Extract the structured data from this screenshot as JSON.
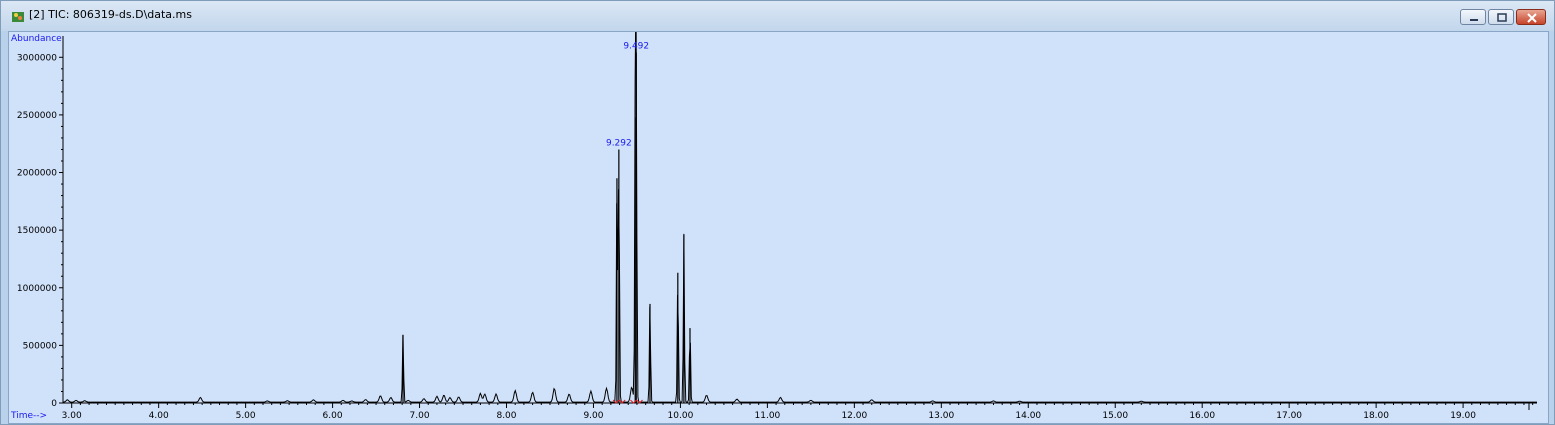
{
  "window": {
    "title": "[2] TIC: 806319-ds.D\\data.ms",
    "buttons": [
      "minimize",
      "restore",
      "close"
    ]
  },
  "chart_data": {
    "type": "line",
    "ylabel": "Abundance",
    "xlabel": "Time-->",
    "xlim": [
      2.9,
      19.85
    ],
    "ylim": [
      0,
      3150000
    ],
    "x_ticks": [
      "3.00",
      "4.00",
      "5.00",
      "6.00",
      "7.00",
      "8.00",
      "9.00",
      "10.00",
      "11.00",
      "12.00",
      "13.00",
      "14.00",
      "15.00",
      "16.00",
      "17.00",
      "18.00",
      "19.00"
    ],
    "x_tick_values": [
      3,
      4,
      5,
      6,
      7,
      8,
      9,
      10,
      11,
      12,
      13,
      14,
      15,
      16,
      17,
      18,
      19
    ],
    "y_ticks": [
      "0",
      "500000",
      "1000000",
      "1500000",
      "2000000",
      "2500000",
      "3000000"
    ],
    "y_tick_values": [
      0,
      500000,
      1000000,
      1500000,
      2000000,
      2500000,
      3000000
    ],
    "annotations": [
      {
        "label": "9.492",
        "x": 9.492,
        "y": 3040000
      },
      {
        "label": "9.292",
        "x": 9.292,
        "y": 2200000
      }
    ],
    "peaks": [
      {
        "x": 2.95,
        "y": 20000
      },
      {
        "x": 3.05,
        "y": 15000
      },
      {
        "x": 3.15,
        "y": 12000
      },
      {
        "x": 4.48,
        "y": 40000
      },
      {
        "x": 5.25,
        "y": 10000
      },
      {
        "x": 5.48,
        "y": 12000
      },
      {
        "x": 5.78,
        "y": 20000
      },
      {
        "x": 6.12,
        "y": 15000
      },
      {
        "x": 6.22,
        "y": 10000
      },
      {
        "x": 6.38,
        "y": 22000
      },
      {
        "x": 6.55,
        "y": 55000
      },
      {
        "x": 6.67,
        "y": 40000
      },
      {
        "x": 6.81,
        "y": 590000
      },
      {
        "x": 6.87,
        "y": 15000
      },
      {
        "x": 7.05,
        "y": 30000
      },
      {
        "x": 7.2,
        "y": 50000
      },
      {
        "x": 7.28,
        "y": 60000
      },
      {
        "x": 7.35,
        "y": 40000
      },
      {
        "x": 7.45,
        "y": 45000
      },
      {
        "x": 7.7,
        "y": 75000
      },
      {
        "x": 7.75,
        "y": 70000
      },
      {
        "x": 7.88,
        "y": 70000
      },
      {
        "x": 8.1,
        "y": 100000
      },
      {
        "x": 8.3,
        "y": 85000
      },
      {
        "x": 8.55,
        "y": 120000
      },
      {
        "x": 8.72,
        "y": 70000
      },
      {
        "x": 8.97,
        "y": 95000
      },
      {
        "x": 9.15,
        "y": 120000
      },
      {
        "x": 9.27,
        "y": 1950000
      },
      {
        "x": 9.292,
        "y": 2200000
      },
      {
        "x": 9.44,
        "y": 130000
      },
      {
        "x": 9.48,
        "y": 2480000
      },
      {
        "x": 9.492,
        "y": 3040000
      },
      {
        "x": 9.65,
        "y": 860000
      },
      {
        "x": 9.97,
        "y": 1130000
      },
      {
        "x": 10.04,
        "y": 1460000
      },
      {
        "x": 10.11,
        "y": 650000
      },
      {
        "x": 10.3,
        "y": 60000
      },
      {
        "x": 10.65,
        "y": 25000
      },
      {
        "x": 11.15,
        "y": 40000
      },
      {
        "x": 11.5,
        "y": 15000
      },
      {
        "x": 12.2,
        "y": 20000
      },
      {
        "x": 12.9,
        "y": 10000
      },
      {
        "x": 13.6,
        "y": 10000
      },
      {
        "x": 13.9,
        "y": 8000
      },
      {
        "x": 15.3,
        "y": 8000
      }
    ]
  }
}
